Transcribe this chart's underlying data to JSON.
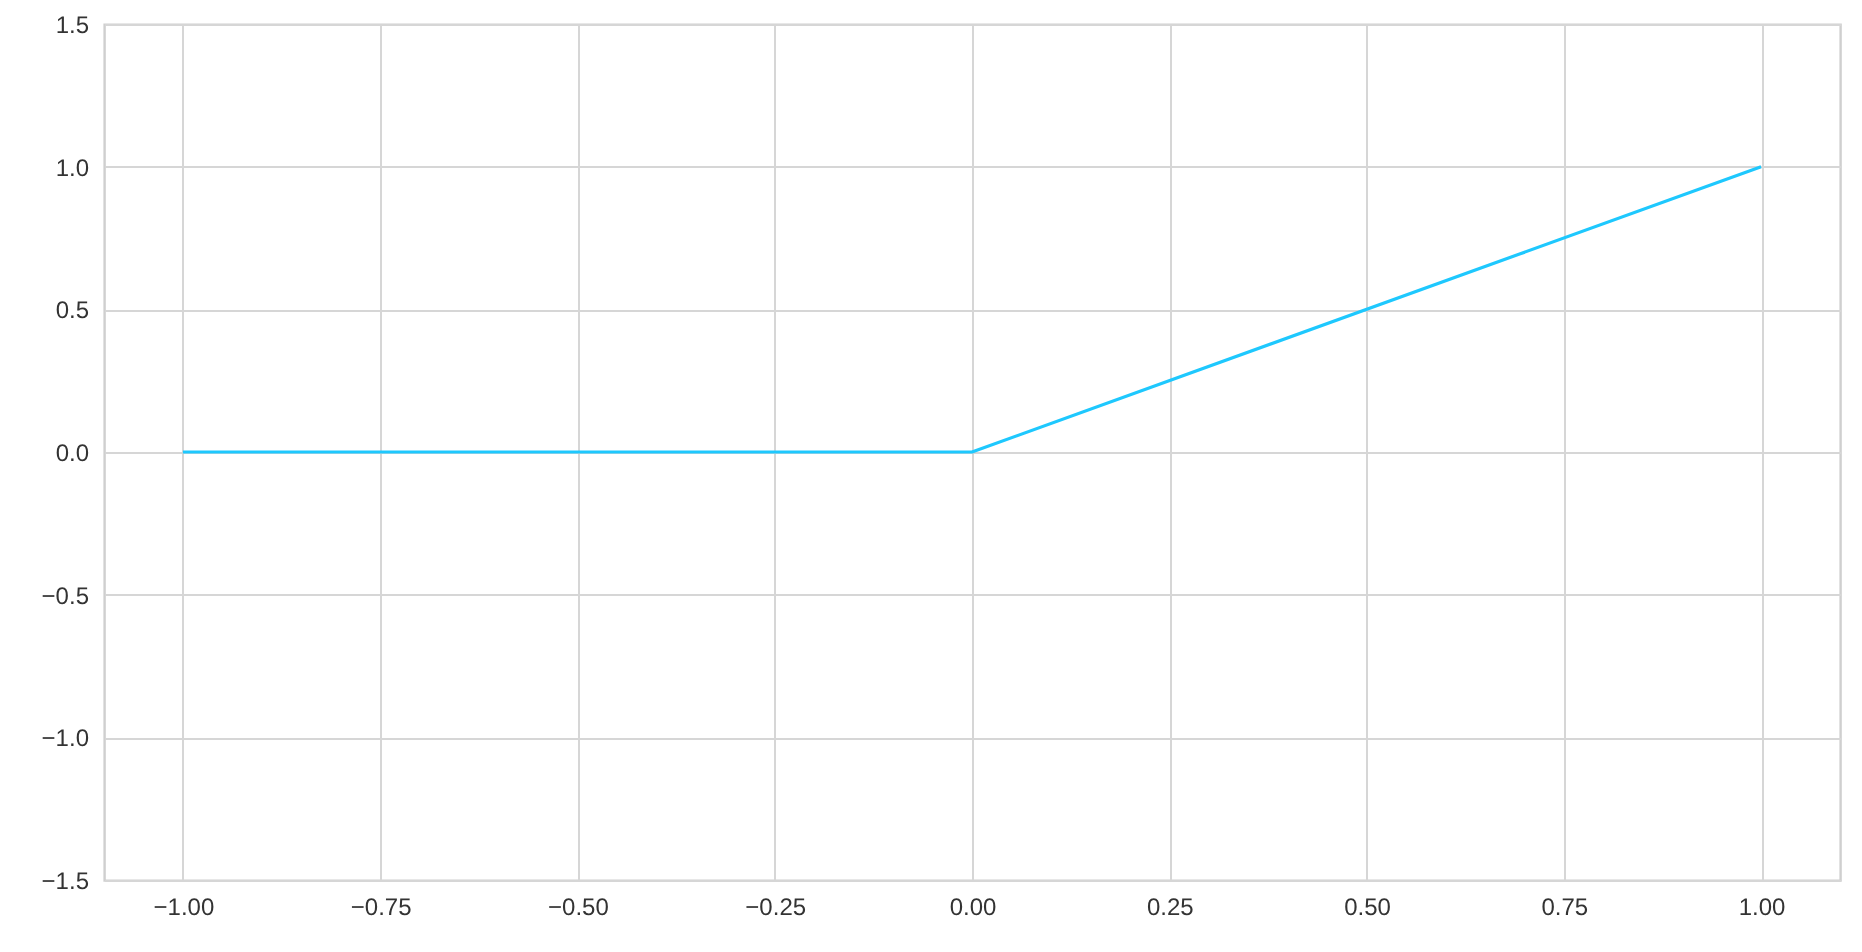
{
  "chart_data": {
    "type": "line",
    "x": [
      -1,
      0,
      1
    ],
    "series": [
      {
        "color": "#1ec8fe",
        "values": [
          0,
          0,
          1
        ]
      }
    ],
    "xlim": [
      -1.1,
      1.1
    ],
    "ylim": [
      -1.5,
      1.5
    ],
    "xticks": [
      {
        "value": -1,
        "label": "−1.00"
      },
      {
        "value": -0.75,
        "label": "−0.75"
      },
      {
        "value": -0.5,
        "label": "−0.50"
      },
      {
        "value": -0.25,
        "label": "−0.25"
      },
      {
        "value": 0,
        "label": "0.00"
      },
      {
        "value": 0.25,
        "label": "0.25"
      },
      {
        "value": 0.5,
        "label": "0.50"
      },
      {
        "value": 0.75,
        "label": "0.75"
      },
      {
        "value": 1,
        "label": "1.00"
      }
    ],
    "yticks": [
      {
        "value": -1.5,
        "label": "−1.5"
      },
      {
        "value": -1,
        "label": "−1.0"
      },
      {
        "value": -0.5,
        "label": "−0.5"
      },
      {
        "value": 0,
        "label": "0.0"
      },
      {
        "value": 0.5,
        "label": "0.5"
      },
      {
        "value": 1,
        "label": "1.0"
      },
      {
        "value": 1.5,
        "label": "1.5"
      }
    ],
    "grid": true
  }
}
